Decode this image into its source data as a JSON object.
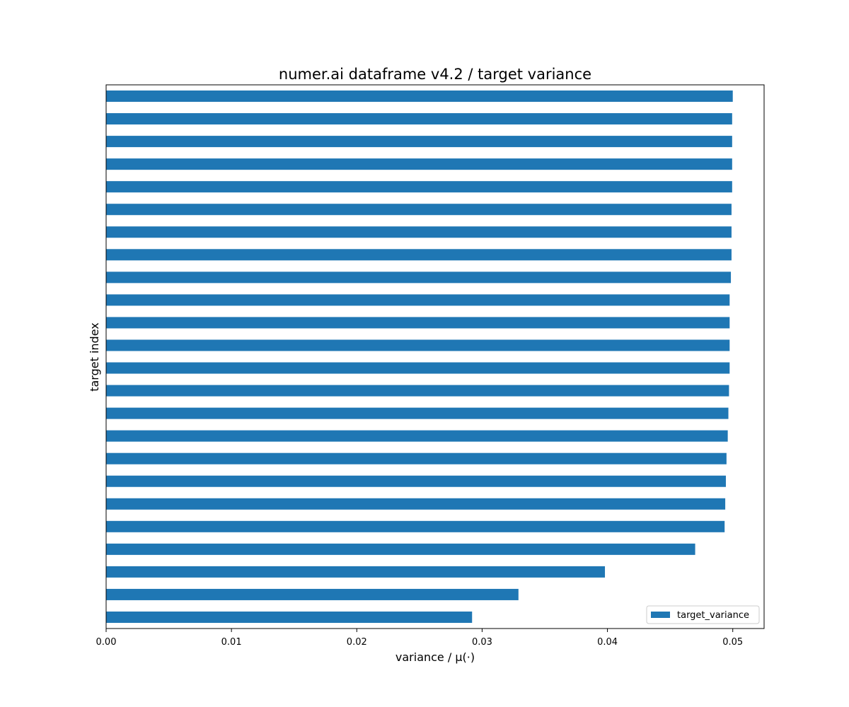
{
  "chart_data": {
    "type": "bar",
    "orientation": "horizontal",
    "title": "numer.ai dataframe v4.2 / target variance",
    "xlabel": "variance / μ(·)",
    "ylabel": "target index",
    "xlim": [
      0.0,
      0.0525
    ],
    "xticks": [
      0.0,
      0.01,
      0.02,
      0.03,
      0.04,
      0.05
    ],
    "xtick_labels": [
      "0.00",
      "0.01",
      "0.02",
      "0.03",
      "0.04",
      "0.05"
    ],
    "yticks_visible": false,
    "grid": false,
    "legend": {
      "position": "lower-right",
      "entries": [
        "target_variance"
      ]
    },
    "bar_color": "#1f77b4",
    "series": [
      {
        "name": "target_variance",
        "values": [
          0.0292,
          0.0329,
          0.0398,
          0.047,
          0.04935,
          0.0494,
          0.04945,
          0.0495,
          0.0496,
          0.04965,
          0.0497,
          0.04975,
          0.04975,
          0.04975,
          0.04975,
          0.04985,
          0.0499,
          0.0499,
          0.0499,
          0.04995,
          0.04995,
          0.04995,
          0.04995,
          0.05
        ]
      }
    ]
  }
}
